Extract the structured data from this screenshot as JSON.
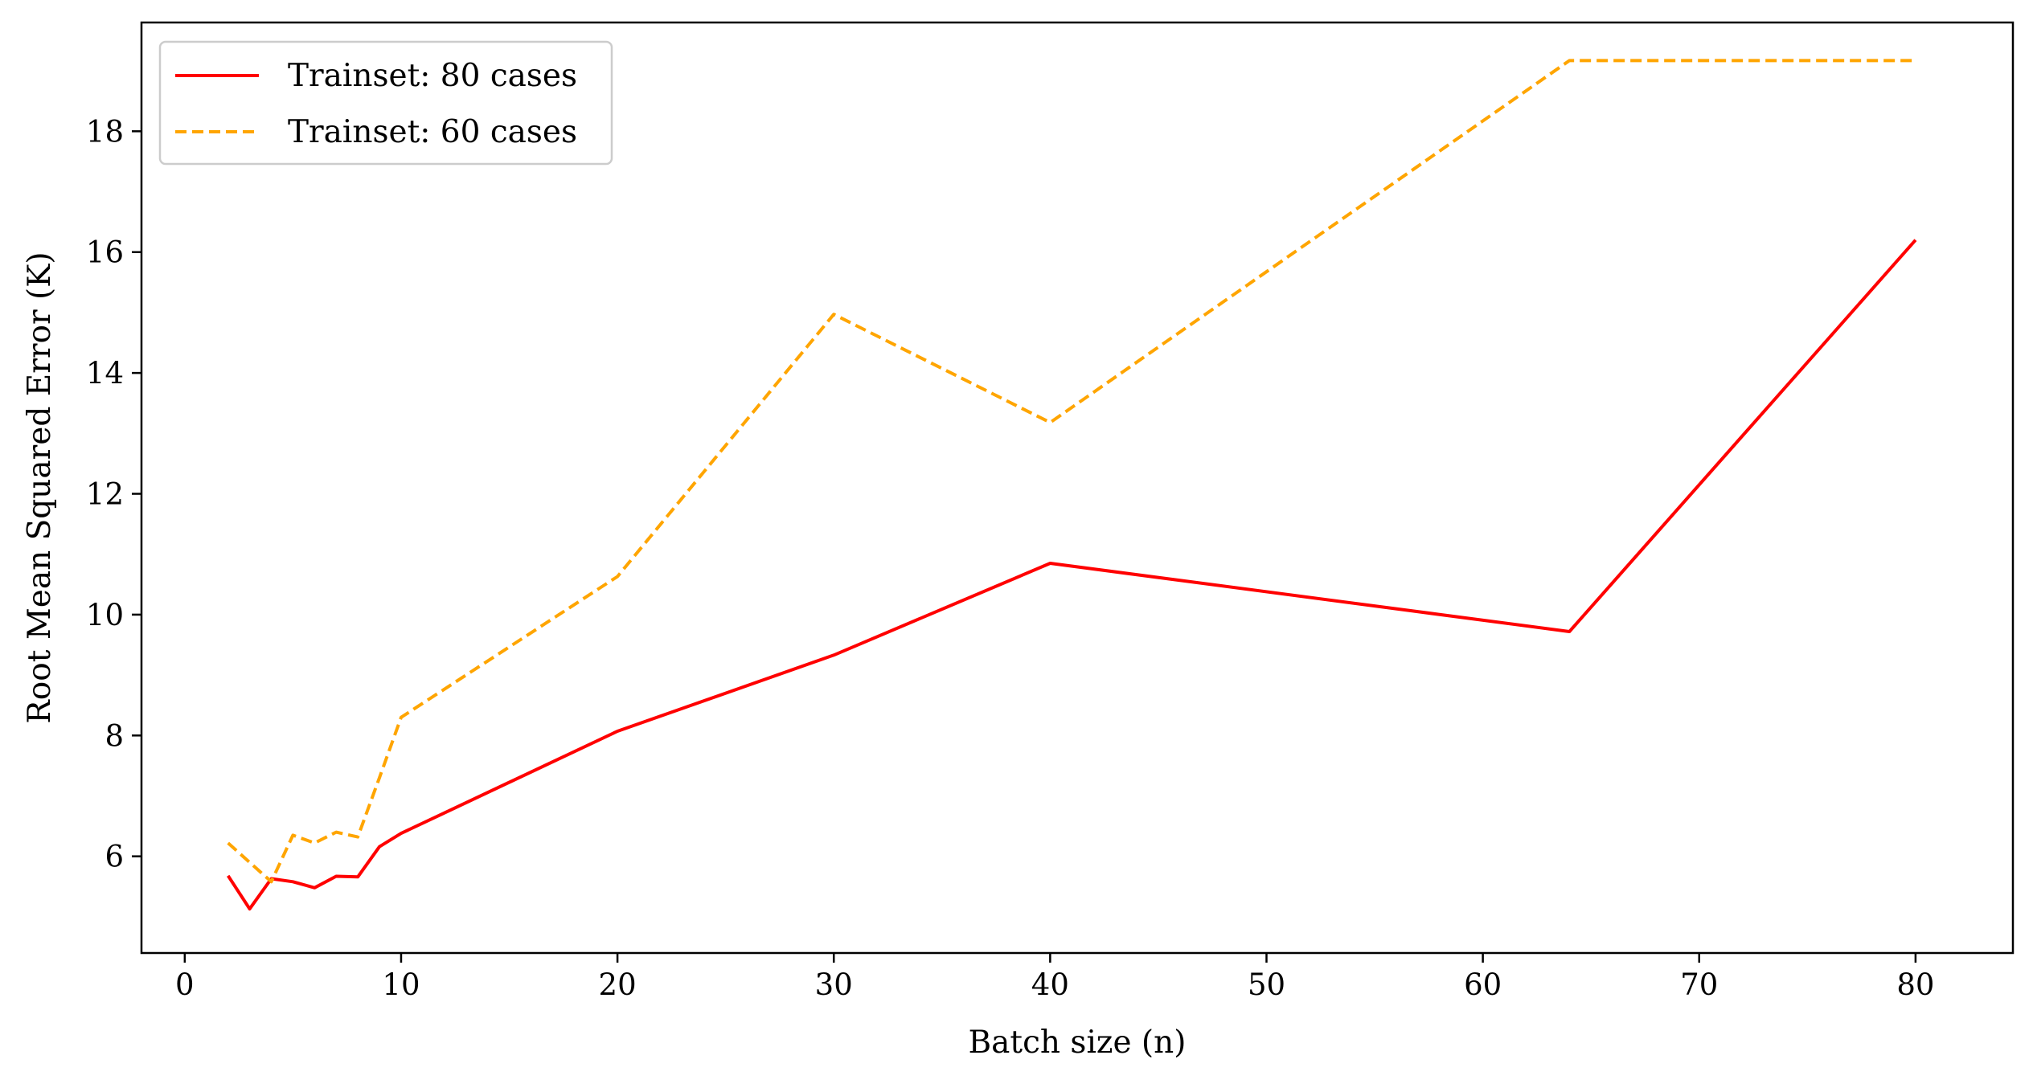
{
  "chart_data": {
    "type": "line",
    "title": "",
    "xlabel": "Batch size (n)",
    "ylabel": "Root Mean Squared Error (K)",
    "xlim": [
      -2,
      84.5
    ],
    "ylim": [
      4.4,
      19.8
    ],
    "xticks": [
      0,
      10,
      20,
      30,
      40,
      50,
      60,
      70,
      80
    ],
    "yticks": [
      6,
      8,
      10,
      12,
      14,
      16,
      18
    ],
    "grid": false,
    "legend_position": "top-left",
    "series": [
      {
        "name": "Trainset: 80 cases",
        "color": "#ff0000",
        "style": "solid",
        "x": [
          2,
          3,
          4,
          5,
          6,
          7,
          8,
          9,
          10,
          20,
          30,
          40,
          64,
          80
        ],
        "y": [
          5.68,
          5.13,
          5.63,
          5.58,
          5.48,
          5.67,
          5.66,
          6.16,
          6.38,
          8.07,
          9.33,
          10.85,
          9.72,
          16.2
        ]
      },
      {
        "name": "Trainset: 60 cases",
        "color": "#ffa500",
        "style": "dashed",
        "x": [
          2,
          3,
          4,
          5,
          6,
          7,
          8,
          9,
          10,
          20,
          30,
          40,
          64,
          80
        ],
        "y": [
          6.22,
          5.9,
          5.58,
          6.35,
          6.22,
          6.4,
          6.32,
          7.3,
          8.3,
          10.63,
          14.97,
          13.18,
          19.17,
          19.17
        ]
      }
    ]
  }
}
